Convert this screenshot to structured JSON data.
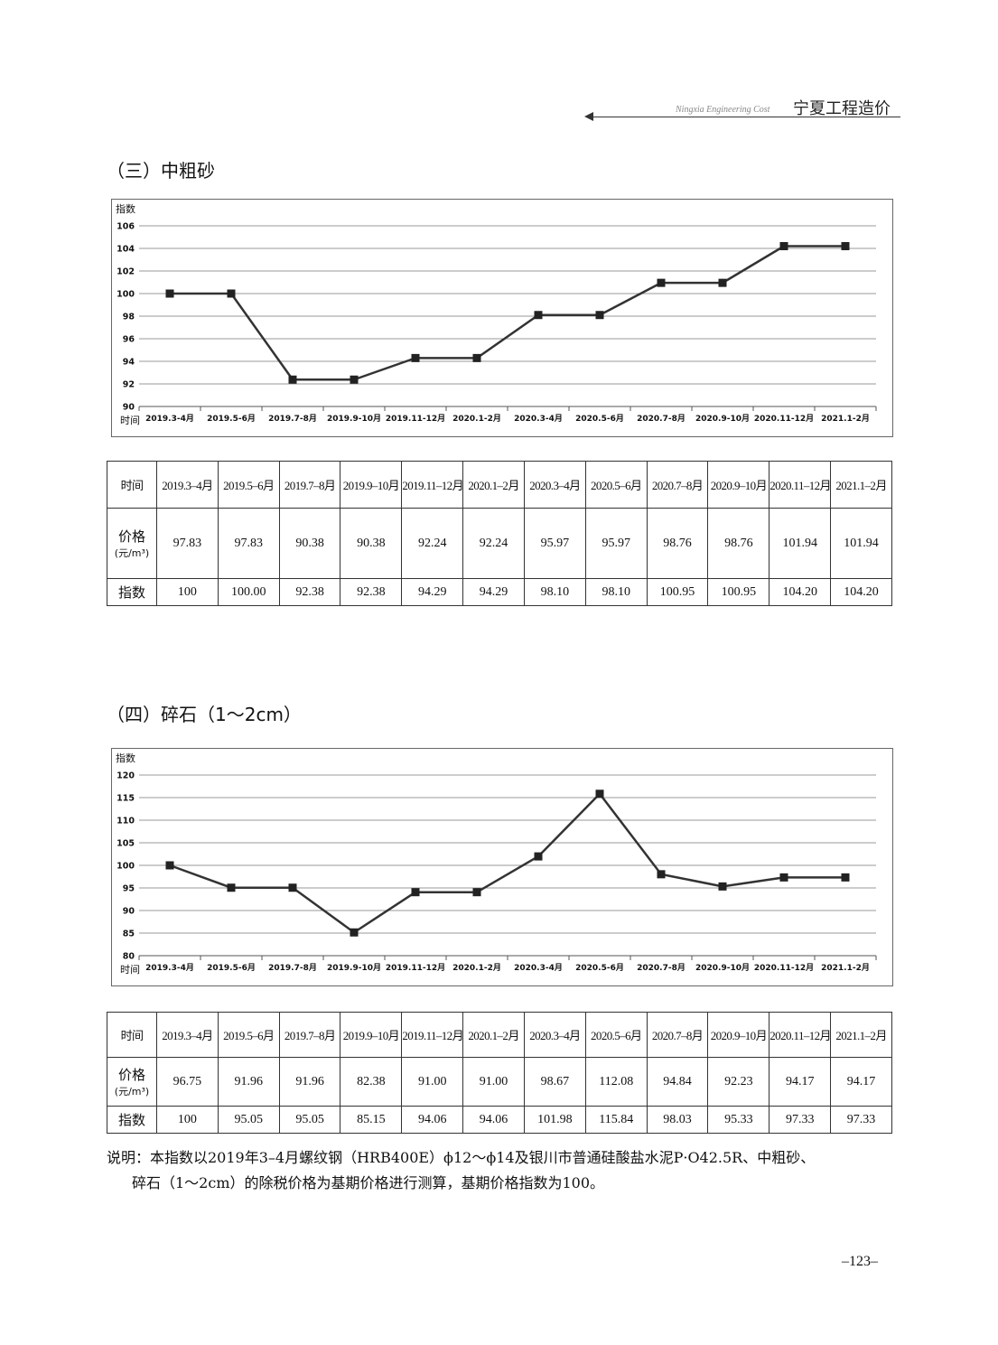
{
  "header": {
    "english": "Ningxia Engineering Cost",
    "chinese": "宁夏工程造价"
  },
  "sections": [
    {
      "title": "（三）中粗砂"
    },
    {
      "title": "（四）碎石（1～2cm）"
    }
  ],
  "chart_data": [
    {
      "type": "line",
      "ylabel": "指数",
      "xlabel": "时间",
      "categories": [
        "2019.3-4月",
        "2019.5-6月",
        "2019.7-8月",
        "2019.9-10月",
        "2019.11-12月",
        "2020.1-2月",
        "2020.3-4月",
        "2020.5-6月",
        "2020.7-8月",
        "2020.9-10月",
        "2020.11-12月",
        "2021.1-2月"
      ],
      "values": [
        100,
        100.0,
        92.38,
        92.38,
        94.29,
        94.29,
        98.1,
        98.1,
        100.95,
        100.95,
        104.2,
        104.2
      ],
      "ylim": [
        90,
        106
      ],
      "ytick_step": 2,
      "grid": true,
      "line_color": "#333333",
      "marker": "square"
    },
    {
      "type": "line",
      "ylabel": "指数",
      "xlabel": "时间",
      "categories": [
        "2019.3-4月",
        "2019.5-6月",
        "2019.7-8月",
        "2019.9-10月",
        "2019.11-12月",
        "2020.1-2月",
        "2020.3-4月",
        "2020.5-6月",
        "2020.7-8月",
        "2020.9-10月",
        "2020.11-12月",
        "2021.1-2月"
      ],
      "values": [
        100,
        95.05,
        95.05,
        85.15,
        94.06,
        94.06,
        101.98,
        115.84,
        98.03,
        95.33,
        97.33,
        97.33
      ],
      "ylim": [
        80,
        120
      ],
      "ytick_step": 5,
      "grid": true,
      "line_color": "#333333",
      "marker": "square"
    }
  ],
  "tables": [
    {
      "row_labels": {
        "time": "时间",
        "price": "价格",
        "price_unit": "(元/m³)",
        "index": "指数"
      },
      "times": [
        "2019.3–4月",
        "2019.5–6月",
        "2019.7–8月",
        "2019.9–10月",
        "2019.11–12月",
        "2020.1–2月",
        "2020.3–4月",
        "2020.5–6月",
        "2020.7–8月",
        "2020.9–10月",
        "2020.11–12月",
        "2021.1–2月"
      ],
      "prices": [
        "97.83",
        "97.83",
        "90.38",
        "90.38",
        "92.24",
        "92.24",
        "95.97",
        "95.97",
        "98.76",
        "98.76",
        "101.94",
        "101.94"
      ],
      "indices": [
        "100",
        "100.00",
        "92.38",
        "92.38",
        "94.29",
        "94.29",
        "98.10",
        "98.10",
        "100.95",
        "100.95",
        "104.20",
        "104.20"
      ]
    },
    {
      "row_labels": {
        "time": "时间",
        "price": "价格",
        "price_unit": "(元/m³)",
        "index": "指数"
      },
      "times": [
        "2019.3–4月",
        "2019.5–6月",
        "2019.7–8月",
        "2019.9–10月",
        "2019.11–12月",
        "2020.1–2月",
        "2020.3–4月",
        "2020.5–6月",
        "2020.7–8月",
        "2020.9–10月",
        "2020.11–12月",
        "2021.1–2月"
      ],
      "prices": [
        "96.75",
        "91.96",
        "91.96",
        "82.38",
        "91.00",
        "91.00",
        "98.67",
        "112.08",
        "94.84",
        "92.23",
        "94.17",
        "94.17"
      ],
      "indices": [
        "100",
        "95.05",
        "95.05",
        "85.15",
        "94.06",
        "94.06",
        "101.98",
        "115.84",
        "98.03",
        "95.33",
        "97.33",
        "97.33"
      ]
    }
  ],
  "note": {
    "line1": "说明：本指数以2019年3–4月螺纹钢（HRB400E）ϕ12～ϕ14及银川市普通硅酸盐水泥P·O42.5R、中粗砂、",
    "line2": "碎石（1～2cm）的除税价格为基期价格进行测算，基期价格指数为100。"
  },
  "page_number": "–123–"
}
